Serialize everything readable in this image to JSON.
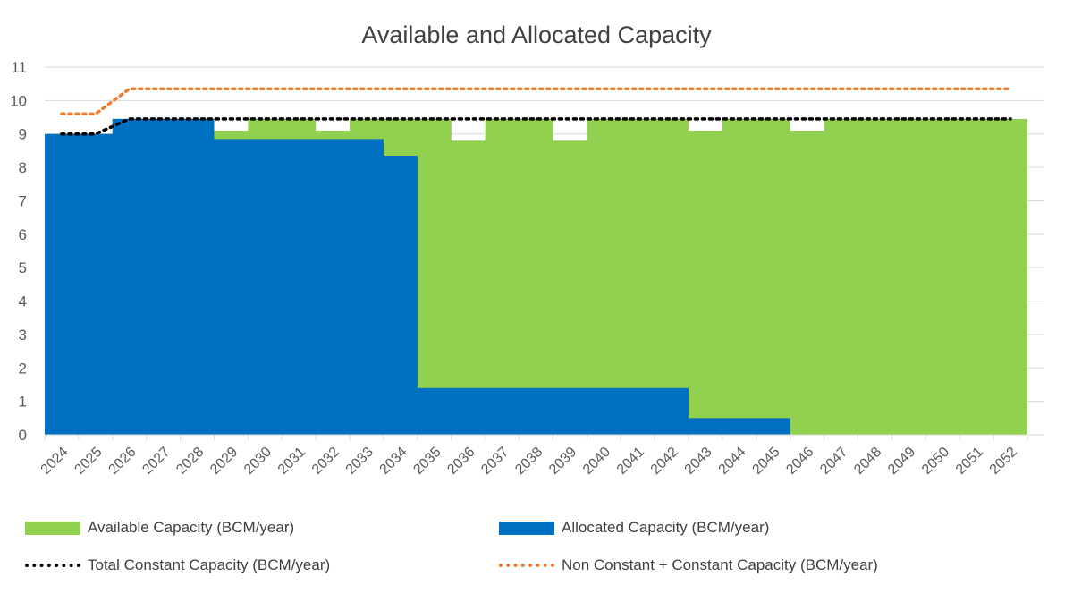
{
  "chart_data": {
    "type": "area",
    "title": "Available and Allocated Capacity",
    "x": [
      "2024",
      "2025",
      "2026",
      "2027",
      "2028",
      "2029",
      "2030",
      "2031",
      "2032",
      "2033",
      "2034",
      "2035",
      "2036",
      "2037",
      "2038",
      "2039",
      "2040",
      "2041",
      "2042",
      "2043",
      "2044",
      "2045",
      "2046",
      "2047",
      "2048",
      "2049",
      "2050",
      "2051",
      "2052"
    ],
    "ylim": [
      0,
      11
    ],
    "yticks": [
      0,
      1,
      2,
      3,
      4,
      5,
      6,
      7,
      8,
      9,
      10,
      11
    ],
    "grid": true,
    "legend_position": "bottom",
    "series": [
      {
        "name": "Available Capacity (BCM/year)",
        "kind": "stepped-area",
        "color": "#92D050",
        "values": [
          9.0,
          9.0,
          9.45,
          9.45,
          9.45,
          9.1,
          9.45,
          9.45,
          9.1,
          9.45,
          9.45,
          9.45,
          8.8,
          9.45,
          9.45,
          8.8,
          9.45,
          9.45,
          9.45,
          9.1,
          9.45,
          9.45,
          9.1,
          9.45,
          9.45,
          9.45,
          9.45,
          9.45,
          9.45
        ]
      },
      {
        "name": "Allocated Capacity (BCM/year)",
        "kind": "stepped-area",
        "color": "#0070C0",
        "values": [
          9.0,
          9.0,
          9.45,
          9.45,
          9.45,
          8.85,
          8.85,
          8.85,
          8.85,
          8.85,
          8.35,
          1.4,
          1.4,
          1.4,
          1.4,
          1.4,
          1.4,
          1.4,
          1.4,
          0.5,
          0.5,
          0.5,
          0,
          0,
          0,
          0,
          0,
          0,
          0
        ]
      },
      {
        "name": "Total Constant  Capacity (BCM/year)",
        "kind": "dotted-line",
        "color": "#000000",
        "values": [
          9.0,
          9.0,
          9.45,
          9.45,
          9.45,
          9.45,
          9.45,
          9.45,
          9.45,
          9.45,
          9.45,
          9.45,
          9.45,
          9.45,
          9.45,
          9.45,
          9.45,
          9.45,
          9.45,
          9.45,
          9.45,
          9.45,
          9.45,
          9.45,
          9.45,
          9.45,
          9.45,
          9.45,
          9.45
        ]
      },
      {
        "name": "Non Constant + Constant Capacity (BCM/year)",
        "kind": "dotted-line",
        "color": "#ED7D31",
        "values": [
          9.6,
          9.6,
          10.35,
          10.35,
          10.35,
          10.35,
          10.35,
          10.35,
          10.35,
          10.35,
          10.35,
          10.35,
          10.35,
          10.35,
          10.35,
          10.35,
          10.35,
          10.35,
          10.35,
          10.35,
          10.35,
          10.35,
          10.35,
          10.35,
          10.35,
          10.35,
          10.35,
          10.35,
          10.35
        ]
      }
    ]
  }
}
